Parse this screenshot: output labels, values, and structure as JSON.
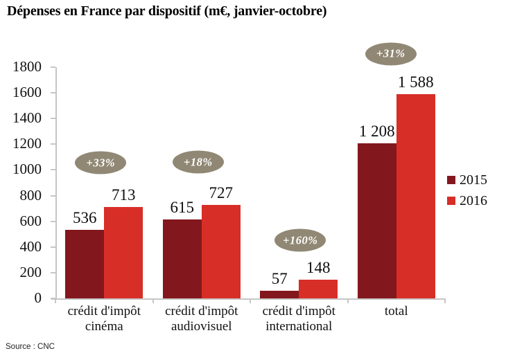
{
  "title": "Dépenses en France par dispositif (m€, janvier-octobre)",
  "source_note": "Source : CNC",
  "colors": {
    "bar_2015": "#82181D",
    "bar_2016": "#D72E27",
    "badge_bg": "#908874",
    "badge_text": "#FFFFFF",
    "axis": "#C6C6C6"
  },
  "legend": {
    "items": [
      {
        "label": "2015",
        "color_key": "bar_2015"
      },
      {
        "label": "2016",
        "color_key": "bar_2016"
      }
    ]
  },
  "chart_data": {
    "type": "bar",
    "title": "Dépenses en France par dispositif (m€, janvier-octobre)",
    "categories": [
      "crédit d'impôt\ncinéma",
      "crédit d'impôt\naudiovisuel",
      "crédit d'impôt\ninternational",
      "total"
    ],
    "series": [
      {
        "name": "2015",
        "values": [
          536,
          615,
          57,
          1208
        ],
        "display_labels": [
          "536",
          "615",
          "57",
          "1 208"
        ],
        "color_key": "bar_2015"
      },
      {
        "name": "2016",
        "values": [
          713,
          727,
          148,
          1588
        ],
        "display_labels": [
          "713",
          "727",
          "148",
          "1 588"
        ],
        "color_key": "bar_2016"
      }
    ],
    "growth_badges": [
      {
        "text": "+33%",
        "category_index": 0,
        "y_value": 1055,
        "x_offset": -5
      },
      {
        "text": "+18%",
        "category_index": 1,
        "y_value": 1060,
        "x_offset": -5
      },
      {
        "text": "+160%",
        "category_index": 2,
        "y_value": 452,
        "x_offset": 2
      },
      {
        "text": "+31%",
        "category_index": 3,
        "y_value": 1905,
        "x_offset": -8
      }
    ],
    "ylim": [
      0,
      1800
    ],
    "yticks": [
      0,
      200,
      400,
      600,
      800,
      1000,
      1200,
      1400,
      1600,
      1800
    ],
    "grid": false,
    "legend_position": "right"
  }
}
